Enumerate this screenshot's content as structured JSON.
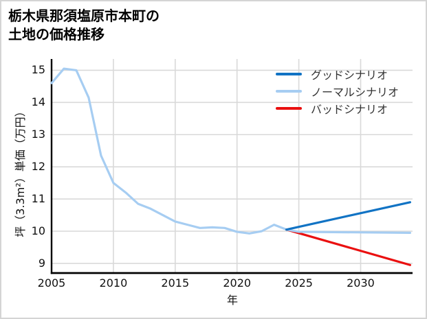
{
  "title": {
    "line1": "栃木県那須塩原市本町の",
    "line2": "土地の価格推移"
  },
  "chart_data": {
    "type": "line",
    "title": "栃木県那須塩原市本町の土地の価格推移",
    "xlabel": "年",
    "ylabel": "坪（3.3m²）単価（万円）",
    "xlim": [
      2005,
      2034.2
    ],
    "ylim": [
      8.7,
      15.35
    ],
    "x_ticks": [
      2005,
      2010,
      2015,
      2020,
      2025,
      2030
    ],
    "y_ticks": [
      9,
      10,
      11,
      12,
      13,
      14,
      15
    ],
    "grid": true,
    "grid_color": "#d9d9d9",
    "axis_color": "#000000",
    "legend_position": "upper-right",
    "series": [
      {
        "id": "price-history",
        "label": null,
        "color": "#a6cdf2",
        "x": [
          2005,
          2006,
          2007,
          2008,
          2009,
          2010,
          2011,
          2012,
          2013,
          2014,
          2015,
          2016,
          2017,
          2018,
          2019,
          2020,
          2021,
          2022,
          2023,
          2024
        ],
        "values": [
          14.6,
          15.05,
          15.0,
          14.15,
          12.35,
          11.5,
          11.2,
          10.85,
          10.7,
          10.5,
          10.3,
          10.2,
          10.1,
          10.12,
          10.1,
          9.98,
          9.93,
          10.0,
          10.2,
          10.05
        ]
      },
      {
        "id": "good-scenario",
        "label": "グッドシナリオ",
        "color": "#1173c4",
        "x": [
          2024,
          2034
        ],
        "values": [
          10.05,
          10.9
        ]
      },
      {
        "id": "normal-scenario",
        "label": "ノーマルシナリオ",
        "color": "#a6cdf2",
        "x": [
          2024,
          2025,
          2034
        ],
        "values": [
          10.05,
          9.98,
          9.95
        ]
      },
      {
        "id": "bad-scenario",
        "label": "バッドシナリオ",
        "color": "#ea1010",
        "x": [
          2024,
          2034
        ],
        "values": [
          10.05,
          8.95
        ]
      }
    ]
  }
}
